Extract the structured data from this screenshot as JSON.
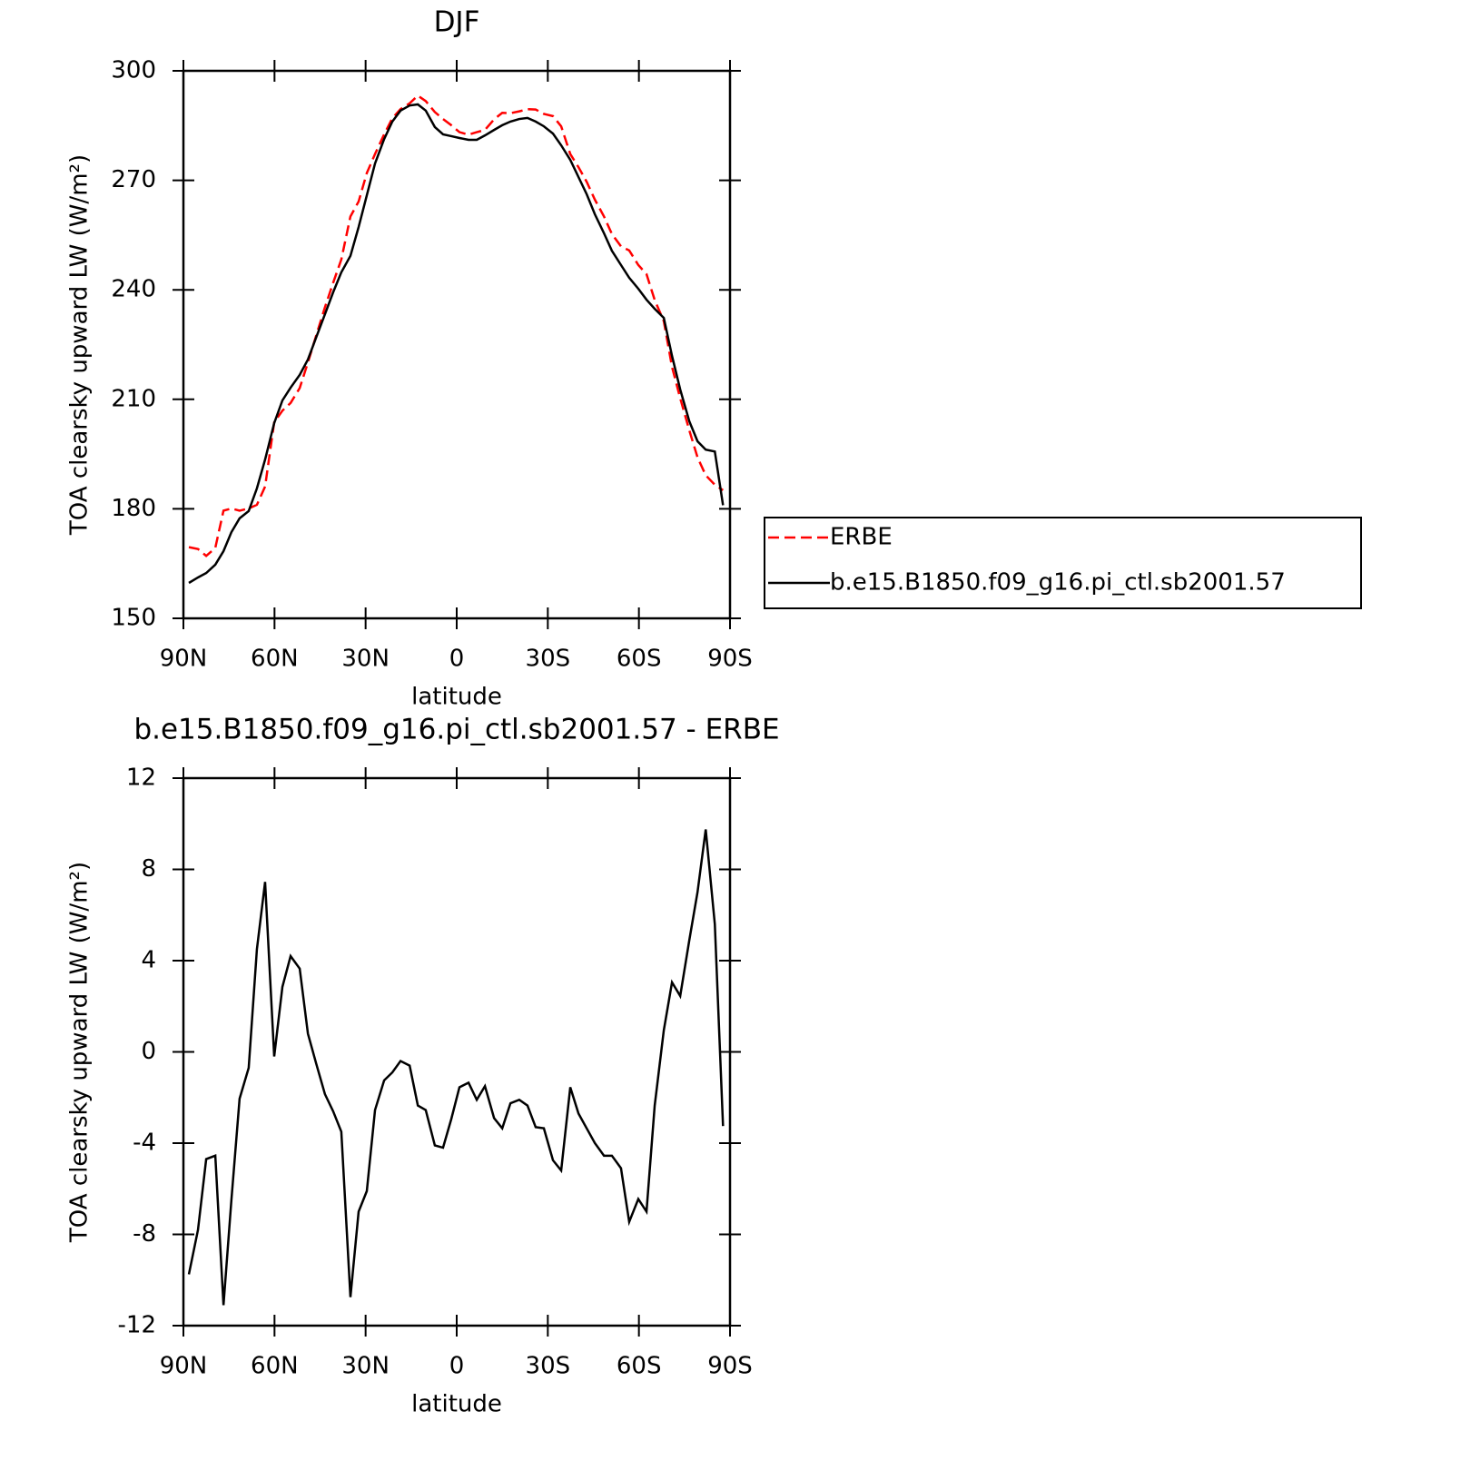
{
  "chart_data": [
    {
      "type": "line",
      "title": "DJF",
      "xlabel": "latitude",
      "ylabel": "TOA clearsky upward LW (W/m²)",
      "x": [
        88.2,
        85.2,
        82.5,
        79.5,
        76.8,
        74.2,
        71.5,
        68.5,
        65.8,
        63.1,
        60.1,
        57.4,
        54.7,
        51.7,
        49.0,
        46.3,
        43.4,
        40.7,
        38.0,
        35.0,
        32.3,
        29.6,
        26.9,
        23.9,
        21.2,
        18.5,
        15.5,
        12.8,
        10.2,
        7.2,
        4.5,
        1.8,
        -0.9,
        -3.9,
        -6.6,
        -9.3,
        -12.3,
        -15.0,
        -17.7,
        -20.6,
        -23.3,
        -26.0,
        -28.7,
        -31.7,
        -34.4,
        -37.4,
        -40.1,
        -42.8,
        -45.5,
        -48.5,
        -51.1,
        -54.1,
        -56.8,
        -59.8,
        -62.5,
        -65.2,
        -68.2,
        -70.9,
        -73.6,
        -76.6,
        -79.3,
        -82.0,
        -85.0,
        -87.7
      ],
      "series": [
        {
          "name": "ERBE",
          "color": "#ff0000",
          "style": "dashed",
          "values": [
            169.5,
            169.0,
            167.1,
            169.3,
            179.5,
            180.1,
            179.5,
            180.1,
            181.1,
            186.1,
            203.7,
            206.9,
            209.0,
            213.1,
            220.1,
            227.4,
            235.2,
            241.9,
            248.3,
            260.1,
            264.2,
            272.0,
            277.2,
            282.6,
            287.0,
            289.5,
            291.1,
            293.2,
            291.7,
            288.7,
            286.8,
            285.1,
            283.2,
            282.5,
            283.2,
            283.8,
            286.7,
            288.5,
            288.4,
            288.9,
            289.5,
            289.4,
            288.2,
            287.6,
            284.8,
            277.2,
            273.6,
            269.6,
            264.7,
            260.1,
            255.3,
            251.9,
            250.8,
            246.8,
            244.3,
            237.2,
            231.4,
            218.9,
            210.3,
            201.5,
            194.1,
            189.2,
            186.6,
            185.1
          ]
        },
        {
          "name": "b.e15.B1850.f09_g16.pi_ctl.sb2001.57",
          "color": "#000000",
          "style": "solid",
          "values": [
            159.7,
            161.2,
            162.4,
            164.7,
            168.4,
            173.6,
            177.4,
            179.4,
            185.6,
            193.5,
            203.5,
            209.7,
            213.2,
            216.7,
            220.9,
            226.9,
            233.3,
            239.3,
            244.8,
            249.3,
            257.2,
            265.9,
            274.6,
            281.3,
            286.1,
            289.1,
            290.5,
            290.8,
            289.1,
            284.6,
            282.6,
            282.1,
            281.6,
            281.1,
            281.1,
            282.3,
            283.8,
            285.1,
            286.1,
            286.8,
            287.1,
            286.1,
            284.8,
            282.8,
            279.6,
            275.6,
            270.9,
            266.2,
            260.7,
            255.5,
            250.7,
            246.8,
            243.3,
            240.3,
            237.3,
            234.8,
            232.3,
            221.9,
            212.7,
            204.0,
            198.5,
            196.2,
            195.7,
            181.0
          ]
        }
      ],
      "xlim": [
        90,
        -90
      ],
      "xticks": [
        {
          "value": 90,
          "label": "90N"
        },
        {
          "value": 60,
          "label": "60N"
        },
        {
          "value": 30,
          "label": "30N"
        },
        0,
        {
          "value": -30,
          "label": "30S"
        },
        {
          "value": -60,
          "label": "60S"
        },
        {
          "value": -90,
          "label": "90S"
        }
      ],
      "ylim": [
        150,
        300
      ],
      "yticks": [
        150,
        180,
        210,
        240,
        270,
        300
      ],
      "legend": "right"
    },
    {
      "type": "line",
      "title": "b.e15.B1850.f09_g16.pi_ctl.sb2001.57 - ERBE",
      "xlabel": "latitude",
      "ylabel": "TOA clearsky upward LW (W/m²)",
      "x": [
        88.2,
        85.2,
        82.5,
        79.5,
        76.8,
        74.2,
        71.5,
        68.5,
        65.8,
        63.1,
        60.1,
        57.4,
        54.7,
        51.7,
        49.0,
        46.3,
        43.4,
        40.7,
        38.0,
        35.0,
        32.3,
        29.6,
        26.9,
        23.9,
        21.2,
        18.5,
        15.5,
        12.8,
        10.2,
        7.2,
        4.5,
        1.8,
        -0.9,
        -3.9,
        -6.6,
        -9.3,
        -12.3,
        -15.0,
        -17.7,
        -20.6,
        -23.3,
        -26.0,
        -28.7,
        -31.7,
        -34.4,
        -37.4,
        -40.1,
        -42.8,
        -45.5,
        -48.5,
        -51.1,
        -54.1,
        -56.8,
        -59.8,
        -62.5,
        -65.2,
        -68.2,
        -70.9,
        -73.6,
        -76.6,
        -79.3,
        -82.0,
        -85.0,
        -87.7
      ],
      "values": [
        -9.75,
        -7.8,
        -4.7,
        -4.55,
        -11.1,
        -6.5,
        -2.05,
        -0.7,
        4.5,
        7.45,
        -0.2,
        2.85,
        4.2,
        3.65,
        0.8,
        -0.5,
        -1.85,
        -2.6,
        -3.5,
        -10.75,
        -7.0,
        -6.1,
        -2.55,
        -1.25,
        -0.9,
        -0.4,
        -0.6,
        -2.35,
        -2.55,
        -4.1,
        -4.2,
        -2.95,
        -1.55,
        -1.35,
        -2.1,
        -1.5,
        -2.9,
        -3.35,
        -2.25,
        -2.1,
        -2.35,
        -3.3,
        -3.35,
        -4.75,
        -5.2,
        -1.55,
        -2.7,
        -3.35,
        -4.0,
        -4.55,
        -4.55,
        -5.1,
        -7.45,
        -6.45,
        -7.0,
        -2.35,
        0.95,
        3.05,
        2.45,
        4.9,
        7.0,
        9.75,
        5.6,
        -3.25
      ],
      "color": "#000000",
      "xlim": [
        90,
        -90
      ],
      "xticks": [
        {
          "value": 90,
          "label": "90N"
        },
        {
          "value": 60,
          "label": "60N"
        },
        {
          "value": 30,
          "label": "30N"
        },
        0,
        {
          "value": -30,
          "label": "30S"
        },
        {
          "value": -60,
          "label": "60S"
        },
        {
          "value": -90,
          "label": "90S"
        }
      ],
      "ylim": [
        -12,
        12
      ],
      "yticks": [
        -12,
        -8,
        -4,
        0,
        4,
        8,
        12
      ]
    }
  ]
}
